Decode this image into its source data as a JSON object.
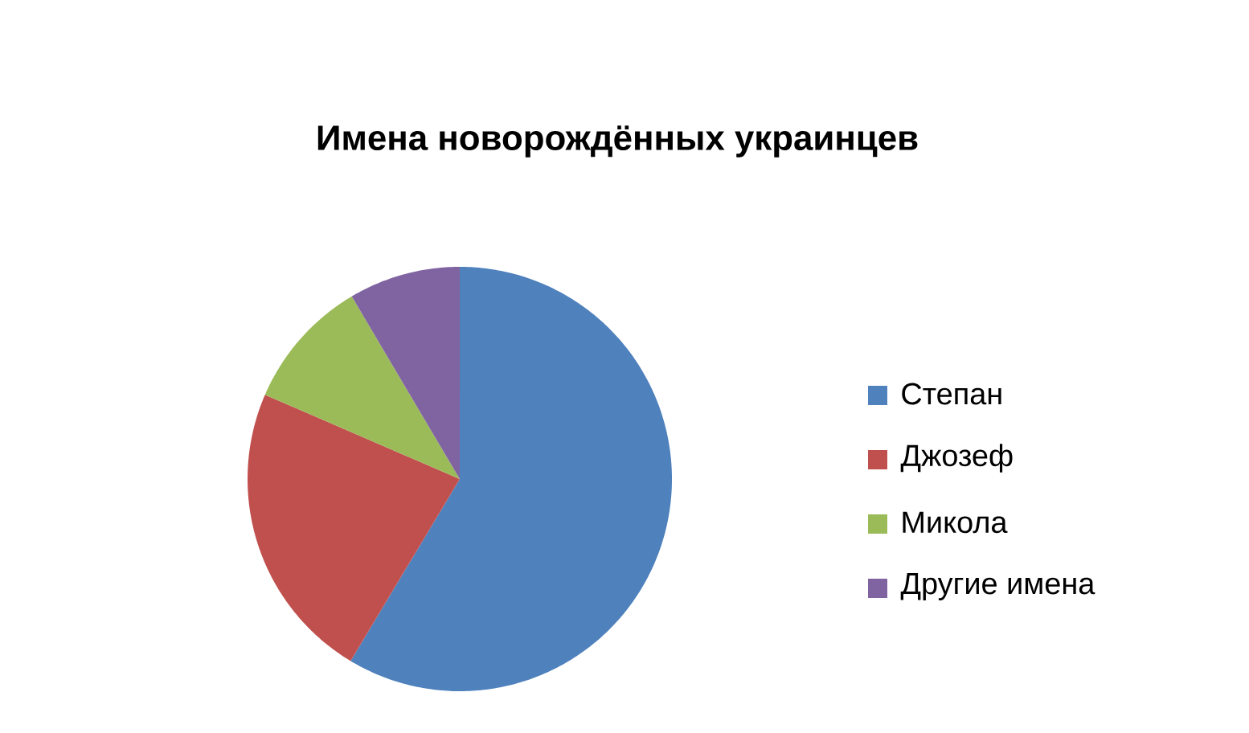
{
  "chart_data": {
    "type": "pie",
    "title": "Имена новорождённых украинцев",
    "categories": [
      "Степан",
      "Джозеф",
      "Микола",
      "Другие имена"
    ],
    "values": [
      58.6,
      22.9,
      10.0,
      8.5
    ],
    "colors": [
      "#4f81bd",
      "#c0504d",
      "#9bbb59",
      "#8064a2"
    ],
    "legend": "right"
  }
}
